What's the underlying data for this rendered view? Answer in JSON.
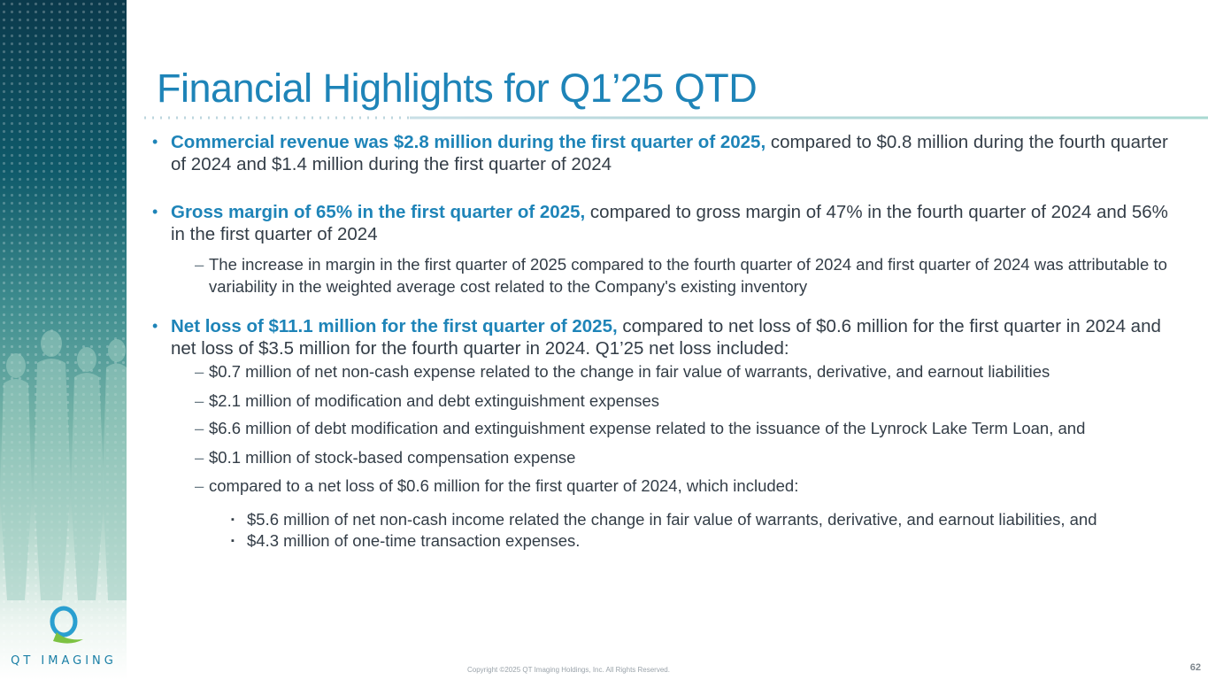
{
  "slide": {
    "title": "Financial Highlights for Q1’25 QTD",
    "logo_text": "QT IMAGING",
    "footer": "Copyright ©2025 QT Imaging Holdings, Inc. All Rights Reserved.",
    "page_number": "62"
  },
  "bullets": [
    {
      "highlight": "Commercial revenue was $2.8 million during the first quarter of 2025,",
      "text": " compared to $0.8 million during the fourth quarter of 2024 and $1.4 million during the first quarter of 2024"
    },
    {
      "highlight": "Gross margin of 65% in the first quarter of 2025,",
      "text": " compared to gross margin of 47% in the fourth quarter of 2024 and 56% in the first quarter of 2024",
      "sub": [
        "The increase in margin in the first quarter of 2025 compared to the fourth quarter of 2024 and first quarter of 2024 was attributable to variability in the weighted average cost related to the Company's existing inventory"
      ]
    },
    {
      "highlight": "Net loss of $11.1 million for the first quarter of 2025,",
      "text": " compared to net loss of $0.6 million for the first quarter in 2024 and net loss of $3.5 million for the fourth quarter in 2024. Q1’25 net loss included:",
      "sub": [
        "$0.7 million of net non-cash expense related to the change in fair value of warrants, derivative, and earnout liabilities",
        "$2.1 million of modification and debt extinguishment expenses",
        "$6.6 million of debt modification and extinguishment expense related to the issuance of the Lynrock Lake Term Loan, and",
        "$0.1 million of stock-based compensation expense",
        "compared to a net loss of $0.6 million for the first quarter of 2024, which included:"
      ],
      "subsub": [
        " $5.6 million of net non-cash income related the change in fair value of warrants, derivative, and earnout liabilities, and",
        "$4.3 million of one-time transaction expenses."
      ]
    }
  ],
  "glyphs": {
    "bullet": "•",
    "dash": "–",
    "square": "▪"
  },
  "colors": {
    "accent": "#1e84b8",
    "body": "#333d47"
  }
}
